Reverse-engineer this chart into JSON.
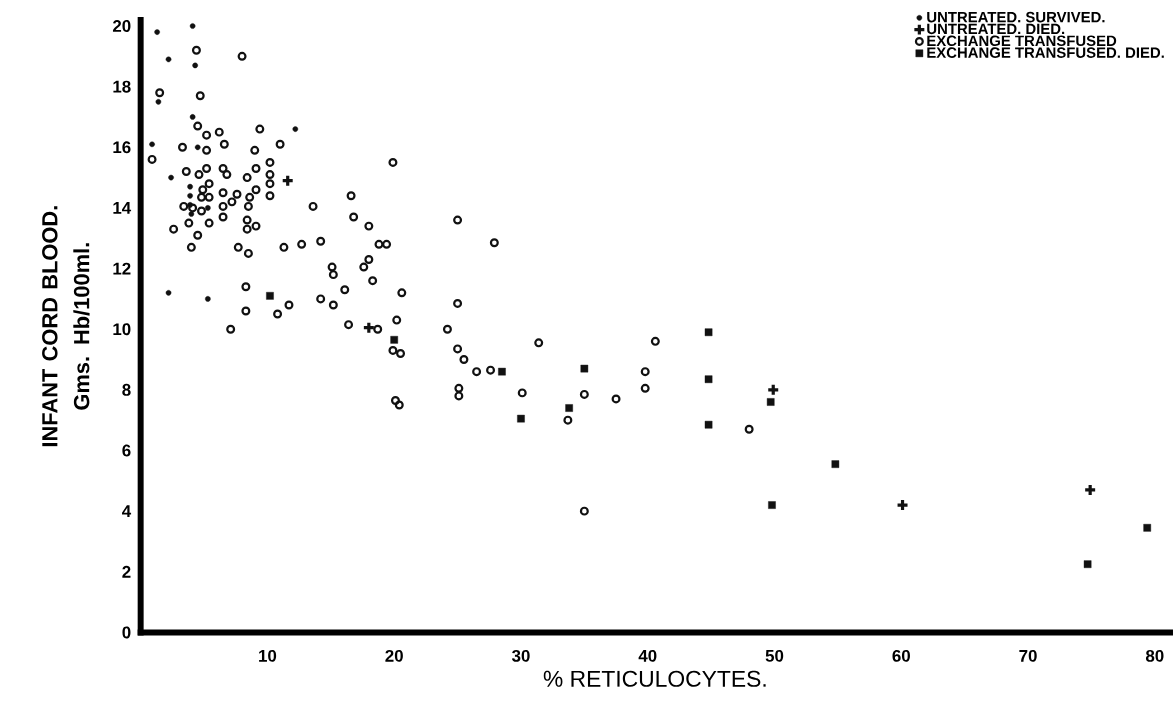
{
  "chart_data": {
    "type": "scatter",
    "xlabel": "% RETICULOCYTES.",
    "ylabel": "INFANT CORD BLOOD. Gms. Hb/100ml.",
    "xlim": [
      0,
      81.2
    ],
    "ylim": [
      0,
      20.2
    ],
    "xticks": [
      10,
      20,
      30,
      40,
      50,
      60,
      70,
      80
    ],
    "yticks": [
      0,
      2,
      4,
      6,
      8,
      10,
      12,
      14,
      16,
      18,
      20
    ],
    "grid": false,
    "legend": "top right",
    "series": [
      {
        "name": "UNTREATED. SURVIVED.",
        "color": "#111111",
        "marker": "circle",
        "x": [
          1.3,
          4.1,
          2.2,
          4.3,
          1.4,
          4.1,
          0.9,
          4.5,
          12.2,
          2.4,
          3.9,
          3.9,
          3.9,
          4.0,
          5.3,
          2.2,
          5.3
        ],
        "values": [
          19.8,
          20.0,
          18.9,
          18.7,
          17.5,
          17.0,
          16.1,
          16.0,
          16.6,
          15.0,
          14.7,
          14.4,
          14.1,
          13.8,
          14.0,
          11.2,
          11.0
        ]
      },
      {
        "name": "UNTREATED. DIED.",
        "color": "#111111",
        "marker": "cross",
        "x": [
          11.6,
          18.0,
          49.9,
          60.1,
          74.9
        ],
        "values": [
          14.9,
          10.05,
          8.0,
          4.2,
          4.7
        ]
      },
      {
        "name": "EXCHANGE TRANSFUSED",
        "color": "#111111",
        "marker": "circle",
        "x": [
          4.4,
          8.0,
          1.5,
          4.7,
          4.5,
          5.2,
          6.2,
          9.4,
          3.3,
          5.2,
          6.6,
          9.0,
          11.0,
          0.9,
          5.2,
          6.5,
          9.1,
          10.2,
          3.6,
          4.6,
          6.8,
          8.4,
          10.2,
          10.2,
          5.4,
          4.9,
          6.5,
          7.6,
          9.1,
          8.6,
          10.2,
          4.8,
          5.4,
          3.4,
          4.1,
          6.5,
          8.5,
          4.8,
          7.2,
          6.5,
          5.4,
          8.4,
          9.1,
          8.4,
          3.8,
          2.6,
          4.5,
          4.0,
          7.7,
          8.5,
          11.3,
          12.7,
          8.3,
          8.3,
          10.8,
          11.7,
          7.1,
          19.9,
          16.6,
          13.6,
          16.8,
          18.0,
          25.0,
          14.2,
          18.8,
          19.4,
          27.9,
          15.1,
          15.2,
          18.0,
          17.6,
          18.3,
          16.1,
          20.6,
          14.2,
          15.2,
          25.0,
          16.4,
          18.7,
          20.2,
          24.2,
          19.9,
          20.5,
          25.0,
          25.5,
          26.5,
          27.6,
          31.4,
          25.1,
          25.1,
          30.1,
          20.1,
          20.4,
          40.6,
          39.8,
          39.8,
          35.0,
          37.5,
          33.7,
          48.0,
          35.0
        ],
        "values": [
          19.2,
          19.0,
          17.8,
          17.7,
          16.7,
          16.4,
          16.5,
          16.6,
          16.0,
          15.9,
          16.1,
          15.9,
          16.1,
          15.6,
          15.3,
          15.3,
          15.3,
          15.5,
          15.2,
          15.1,
          15.1,
          15.0,
          15.1,
          14.8,
          14.8,
          14.6,
          14.5,
          14.45,
          14.6,
          14.35,
          14.4,
          14.35,
          14.35,
          14.05,
          14.0,
          14.05,
          14.05,
          13.9,
          14.2,
          13.7,
          13.5,
          13.6,
          13.4,
          13.3,
          13.5,
          13.3,
          13.1,
          12.7,
          12.7,
          12.5,
          12.7,
          12.8,
          11.4,
          10.6,
          10.5,
          10.8,
          10.0,
          15.5,
          14.4,
          14.05,
          13.7,
          13.4,
          13.6,
          12.9,
          12.8,
          12.8,
          12.85,
          12.05,
          11.8,
          12.3,
          12.05,
          11.6,
          11.3,
          11.2,
          11.0,
          10.8,
          10.85,
          10.15,
          10.0,
          10.3,
          10.0,
          9.3,
          9.2,
          9.35,
          9.0,
          8.6,
          8.65,
          9.55,
          8.05,
          7.8,
          7.9,
          7.65,
          7.5,
          9.6,
          8.6,
          8.05,
          7.85,
          7.7,
          7.0,
          6.7,
          4.0
        ]
      },
      {
        "name": "EXCHANGE TRANSFUSED. DIED.",
        "color": "#111111",
        "marker": "square",
        "x": [
          10.2,
          20.0,
          28.5,
          30.0,
          35.0,
          33.8,
          44.8,
          44.8,
          44.8,
          49.7,
          49.8,
          54.8,
          74.7,
          79.4
        ],
        "values": [
          11.1,
          9.65,
          8.6,
          7.05,
          8.7,
          7.4,
          9.9,
          8.35,
          6.85,
          7.6,
          4.2,
          5.55,
          2.25,
          3.45
        ]
      }
    ]
  }
}
